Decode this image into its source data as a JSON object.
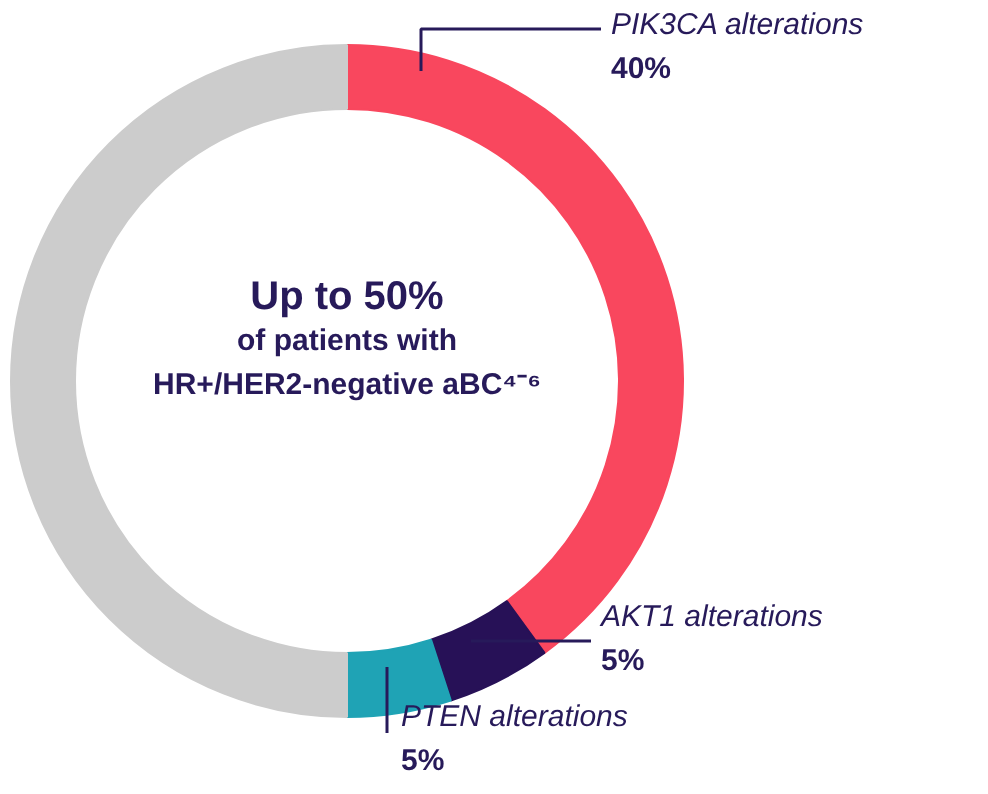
{
  "chart_data": {
    "type": "donut",
    "categories": [
      "PIK3CA alterations",
      "AKT1 alterations",
      "PTEN alterations",
      null
    ],
    "values": [
      40,
      5,
      5,
      50
    ],
    "colors": [
      "#f9475e",
      "#271157",
      "#1fa3b5",
      "#cccccc"
    ],
    "value_labels": [
      "40%",
      "5%",
      "5%",
      null
    ],
    "annotations": [
      "Up to 50%",
      "of patients with",
      "HR+/HER2-negative aBC⁴⁻⁶"
    ]
  }
}
